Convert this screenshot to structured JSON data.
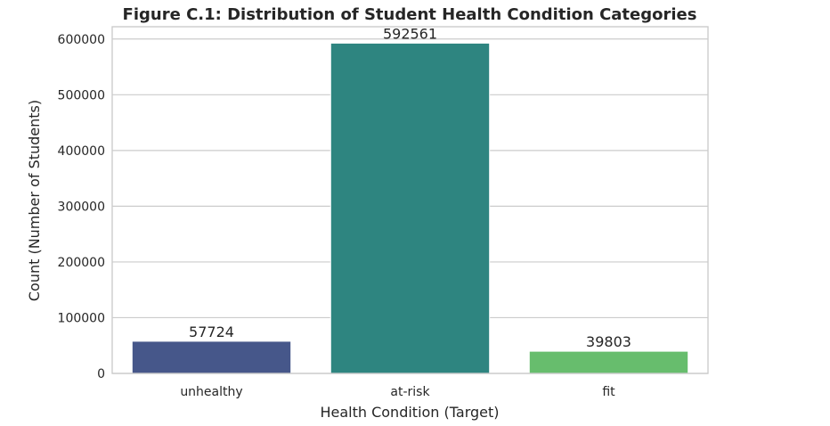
{
  "chart_data": {
    "type": "bar",
    "title": "Figure C.1: Distribution of Student Health Condition Categories",
    "xlabel": "Health Condition (Target)",
    "ylabel": "Count (Number of Students)",
    "categories": [
      "unhealthy",
      "at-risk",
      "fit"
    ],
    "values": [
      57724,
      592561,
      39803
    ],
    "colors": [
      "#46578a",
      "#2e8580",
      "#67bd6d"
    ],
    "ylim": [
      0,
      622000
    ],
    "yticks": [
      0,
      100000,
      200000,
      300000,
      400000,
      500000,
      600000
    ],
    "grid": true,
    "legend": "none"
  }
}
